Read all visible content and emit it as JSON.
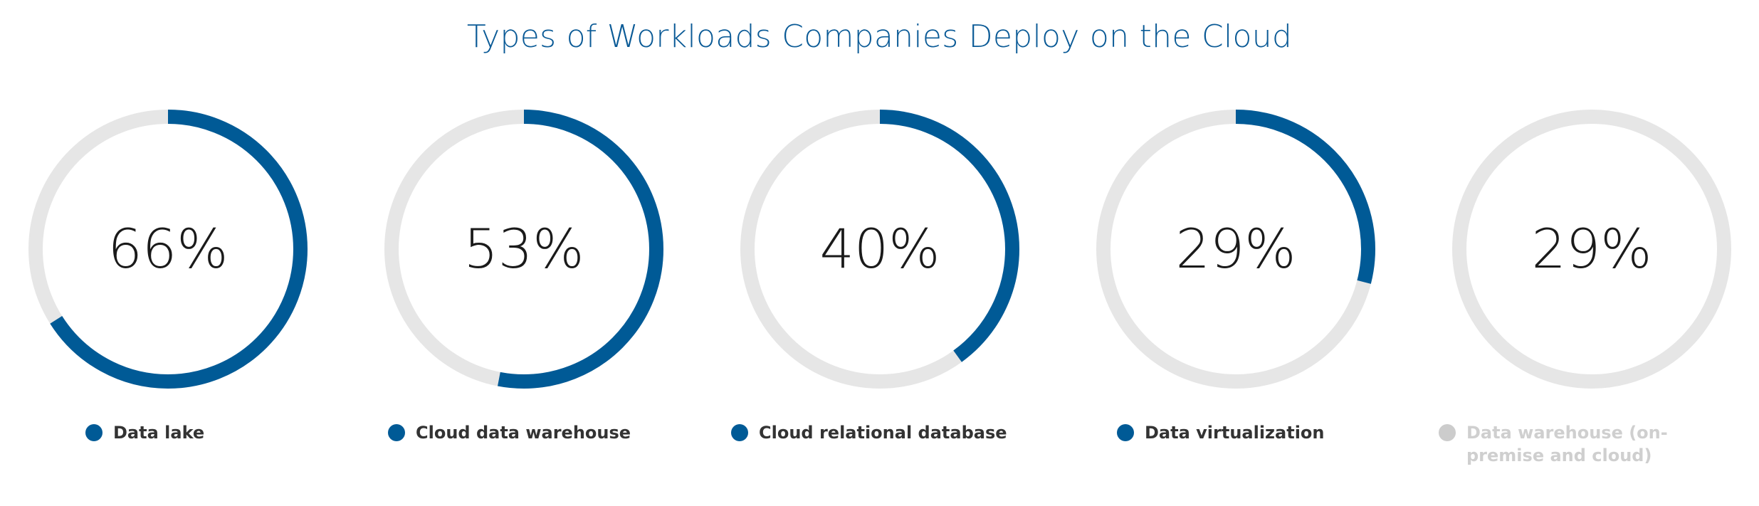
{
  "chart_data": {
    "type": "donut",
    "title": "Types of Workloads Companies Deploy on the Cloud",
    "colors": {
      "active": "#005a96",
      "track": "#e6e6e6",
      "inactive_legend": "#cccccc"
    },
    "items": [
      {
        "label": "Data lake",
        "value": 66,
        "display": "66%",
        "active": true
      },
      {
        "label": "Cloud data warehouse",
        "value": 53,
        "display": "53%",
        "active": true
      },
      {
        "label": "Cloud relational database",
        "value": 40,
        "display": "40%",
        "active": true
      },
      {
        "label": "Data virtualization",
        "value": 29,
        "display": "29%",
        "active": true
      },
      {
        "label": "Data warehouse (on-premise and cloud)",
        "value": 29,
        "display": "29%",
        "active": false
      }
    ]
  }
}
